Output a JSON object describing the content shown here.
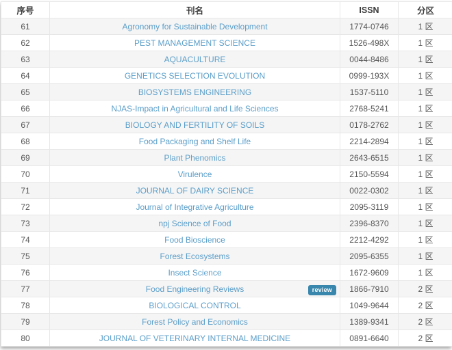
{
  "colors": {
    "link": "#5b9ec9",
    "badge_bg": "#3a87ad",
    "stripe_row": "#f5f5f5",
    "border": "#e7e7e7",
    "header_text": "#3c3c3c",
    "cell_text": "#565656"
  },
  "table": {
    "columns": [
      {
        "key": "index",
        "label": "序号"
      },
      {
        "key": "name",
        "label": "刊名"
      },
      {
        "key": "issn",
        "label": "ISSN"
      },
      {
        "key": "zone",
        "label": "分区"
      }
    ],
    "rows": [
      {
        "index": "61",
        "name": "Agronomy for Sustainable Development",
        "issn": "1774-0746",
        "zone": "1 区"
      },
      {
        "index": "62",
        "name": "PEST MANAGEMENT SCIENCE",
        "issn": "1526-498X",
        "zone": "1 区"
      },
      {
        "index": "63",
        "name": "AQUACULTURE",
        "issn": "0044-8486",
        "zone": "1 区"
      },
      {
        "index": "64",
        "name": "GENETICS SELECTION EVOLUTION",
        "issn": "0999-193X",
        "zone": "1 区"
      },
      {
        "index": "65",
        "name": "BIOSYSTEMS ENGINEERING",
        "issn": "1537-5110",
        "zone": "1 区"
      },
      {
        "index": "66",
        "name": "NJAS-Impact in Agricultural and Life Sciences",
        "issn": "2768-5241",
        "zone": "1 区"
      },
      {
        "index": "67",
        "name": "BIOLOGY AND FERTILITY OF SOILS",
        "issn": "0178-2762",
        "zone": "1 区"
      },
      {
        "index": "68",
        "name": "Food Packaging and Shelf Life",
        "issn": "2214-2894",
        "zone": "1 区"
      },
      {
        "index": "69",
        "name": "Plant Phenomics",
        "issn": "2643-6515",
        "zone": "1 区"
      },
      {
        "index": "70",
        "name": "Virulence",
        "issn": "2150-5594",
        "zone": "1 区"
      },
      {
        "index": "71",
        "name": "JOURNAL OF DAIRY SCIENCE",
        "issn": "0022-0302",
        "zone": "1 区"
      },
      {
        "index": "72",
        "name": "Journal of Integrative Agriculture",
        "issn": "2095-3119",
        "zone": "1 区"
      },
      {
        "index": "73",
        "name": "npj Science of Food",
        "issn": "2396-8370",
        "zone": "1 区"
      },
      {
        "index": "74",
        "name": "Food Bioscience",
        "issn": "2212-4292",
        "zone": "1 区"
      },
      {
        "index": "75",
        "name": "Forest Ecosystems",
        "issn": "2095-6355",
        "zone": "1 区"
      },
      {
        "index": "76",
        "name": "Insect Science",
        "issn": "1672-9609",
        "zone": "1 区"
      },
      {
        "index": "77",
        "name": "Food Engineering Reviews",
        "issn": "1866-7910",
        "zone": "2 区",
        "badge": "review"
      },
      {
        "index": "78",
        "name": "BIOLOGICAL CONTROL",
        "issn": "1049-9644",
        "zone": "2 区"
      },
      {
        "index": "79",
        "name": "Forest Policy and Economics",
        "issn": "1389-9341",
        "zone": "2 区"
      },
      {
        "index": "80",
        "name": "JOURNAL OF VETERINARY INTERNAL MEDICINE",
        "issn": "0891-6640",
        "zone": "2 区"
      }
    ]
  }
}
